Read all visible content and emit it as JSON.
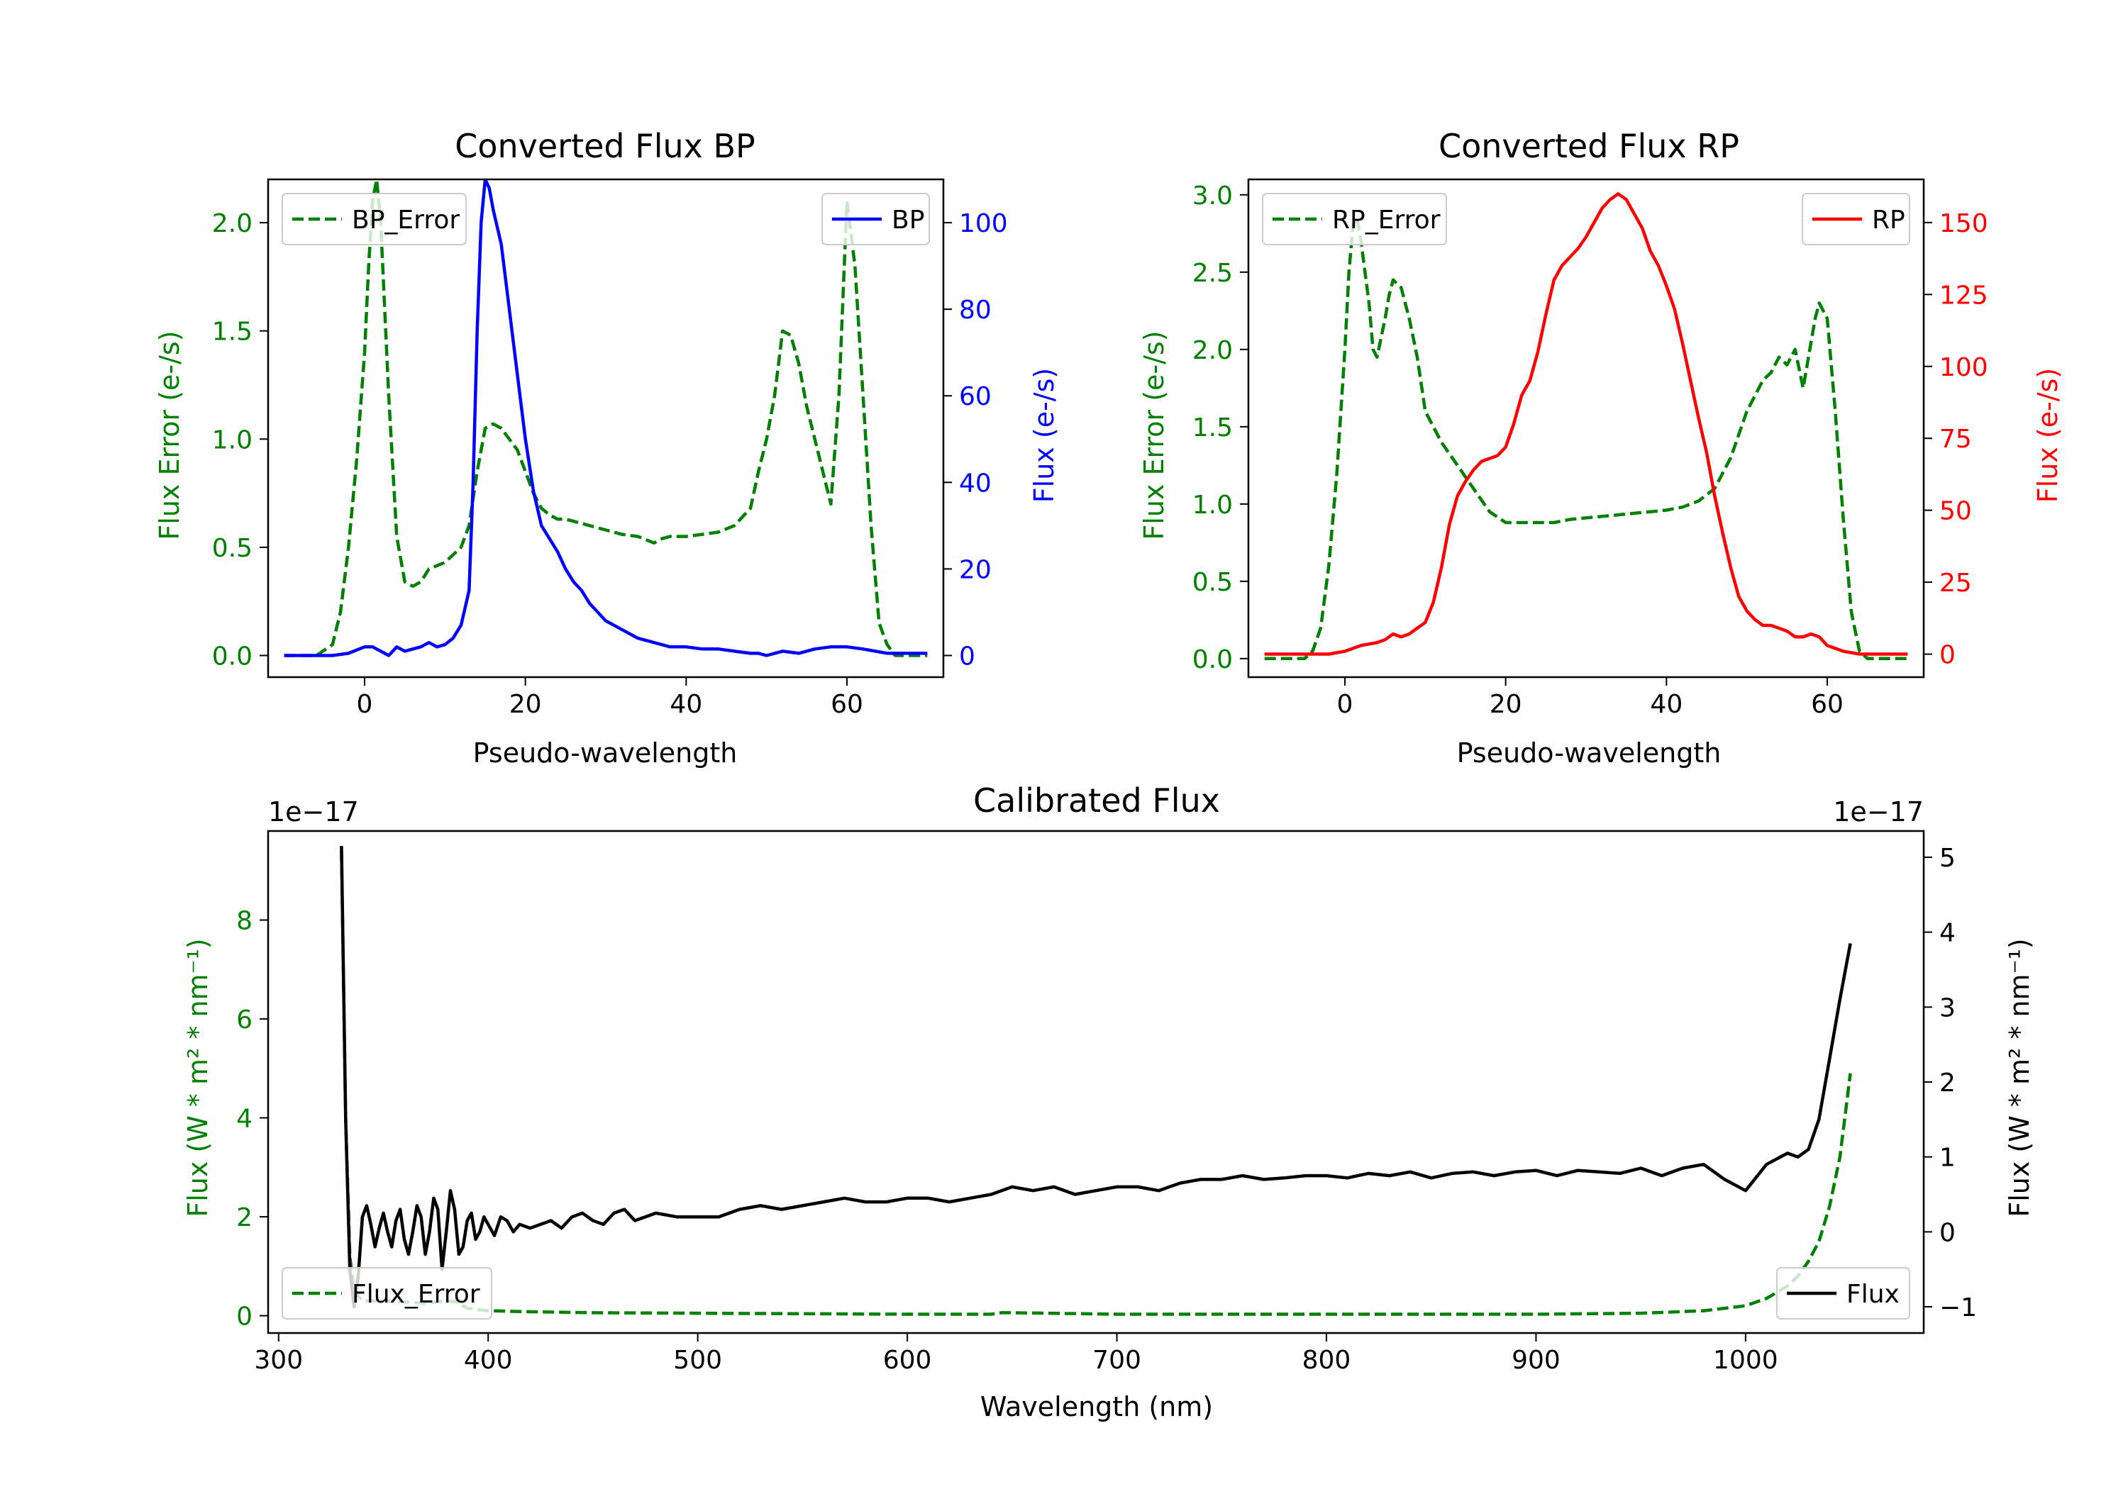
{
  "colors": {
    "error_green": "#008000",
    "bp_blue": "#0000ff",
    "rp_red": "#ff0000",
    "flux_black": "#000000",
    "axis_black": "#000000"
  },
  "chart_data": [
    {
      "type": "line",
      "title": "Converted Flux BP",
      "xlabel": "Pseudo-wavelength",
      "ylabel_left": "Flux Error (e-/s)",
      "ylabel_right": "Flux (e-/s)",
      "xlim": [
        -12,
        72
      ],
      "ylim_left": [
        -0.1,
        2.2
      ],
      "ylim_right": [
        -5,
        110
      ],
      "x_ticks": [
        0,
        20,
        40,
        60
      ],
      "y_ticks_left": [
        0.0,
        0.5,
        1.0,
        1.5,
        2.0
      ],
      "y_ticks_right": [
        0,
        20,
        40,
        60,
        80,
        100
      ],
      "legend_left": "top-left",
      "legend_right": "top-right",
      "series": [
        {
          "name": "BP_Error",
          "axis": "left",
          "style": "dashed",
          "color": "#008000",
          "x": [
            -10,
            -6,
            -4,
            -3,
            -2,
            -1,
            0,
            0.5,
            1,
            1.5,
            2,
            3,
            4,
            5,
            6,
            7,
            8,
            10,
            12,
            13,
            14,
            15,
            16,
            17,
            18,
            19,
            20,
            21,
            22,
            23,
            24,
            25,
            26,
            28,
            30,
            32,
            34,
            36,
            37,
            38,
            40,
            42,
            44,
            46,
            48,
            49,
            50,
            51,
            52,
            53,
            54,
            55,
            56,
            57,
            58,
            59,
            60,
            61,
            62,
            63,
            64,
            65,
            66,
            70
          ],
          "values": [
            0.0,
            0.0,
            0.05,
            0.2,
            0.5,
            0.9,
            1.4,
            1.8,
            2.1,
            2.2,
            2.0,
            1.2,
            0.55,
            0.34,
            0.32,
            0.34,
            0.4,
            0.43,
            0.5,
            0.6,
            0.85,
            1.05,
            1.07,
            1.05,
            1.0,
            0.95,
            0.85,
            0.75,
            0.68,
            0.65,
            0.63,
            0.63,
            0.62,
            0.6,
            0.58,
            0.56,
            0.55,
            0.52,
            0.54,
            0.55,
            0.55,
            0.56,
            0.57,
            0.6,
            0.68,
            0.85,
            1.0,
            1.2,
            1.5,
            1.48,
            1.35,
            1.15,
            1.0,
            0.85,
            0.7,
            1.2,
            2.1,
            1.8,
            1.2,
            0.6,
            0.15,
            0.05,
            0.0,
            0.0
          ]
        },
        {
          "name": "BP",
          "axis": "right",
          "style": "solid",
          "color": "#0000ff",
          "x": [
            -10,
            -4,
            -2,
            0,
            1,
            2,
            3,
            4,
            5,
            6,
            7,
            8,
            9,
            10,
            11,
            12,
            13,
            13.5,
            14,
            14.5,
            15,
            15.5,
            16,
            17,
            18,
            19,
            20,
            21,
            22,
            23,
            24,
            25,
            26,
            27,
            28,
            29,
            30,
            31,
            32,
            33,
            34,
            36,
            38,
            40,
            42,
            44,
            46,
            48,
            49,
            50,
            52,
            54,
            56,
            58,
            60,
            62,
            65,
            70
          ],
          "values": [
            0,
            0,
            0.5,
            2,
            2,
            1,
            0,
            2,
            1,
            1.5,
            2,
            3,
            2,
            2.5,
            4,
            7,
            15,
            40,
            75,
            100,
            110,
            108,
            103,
            95,
            80,
            65,
            50,
            38,
            30,
            27,
            24,
            20,
            17,
            15,
            12,
            10,
            8,
            7,
            6,
            5,
            4,
            3,
            2,
            2,
            1.5,
            1.5,
            1,
            0.5,
            0.5,
            0,
            1,
            0.5,
            1.5,
            2,
            2,
            1.5,
            0.5,
            0.5
          ]
        }
      ]
    },
    {
      "type": "line",
      "title": "Converted Flux RP",
      "xlabel": "Pseudo-wavelength",
      "ylabel_left": "Flux Error (e-/s)",
      "ylabel_right": "Flux (e-/s)",
      "xlim": [
        -12,
        72
      ],
      "ylim_left": [
        -0.12,
        3.1
      ],
      "ylim_right": [
        -8,
        165
      ],
      "x_ticks": [
        0,
        20,
        40,
        60
      ],
      "y_ticks_left": [
        0.0,
        0.5,
        1.0,
        1.5,
        2.0,
        2.5,
        3.0
      ],
      "y_ticks_right": [
        0,
        25,
        50,
        75,
        100,
        125,
        150
      ],
      "legend_left": "top-left",
      "legend_right": "top-right",
      "series": [
        {
          "name": "RP_Error",
          "axis": "left",
          "style": "dashed",
          "color": "#008000",
          "x": [
            -10,
            -5,
            -4,
            -3,
            -2,
            -1,
            0,
            0.5,
            1,
            1.5,
            2,
            3,
            3.5,
            4,
            5,
            5.5,
            6,
            7,
            8,
            9,
            10,
            11,
            12,
            14,
            16,
            18,
            20,
            22,
            24,
            26,
            28,
            30,
            32,
            34,
            36,
            38,
            40,
            42,
            44,
            46,
            48,
            50,
            52,
            53,
            54,
            55,
            56,
            57,
            58,
            58.5,
            59,
            60,
            61,
            62,
            63,
            64,
            65,
            70
          ],
          "values": [
            0,
            0,
            0.05,
            0.2,
            0.6,
            1.2,
            2.0,
            2.5,
            2.8,
            2.85,
            2.7,
            2.3,
            2.0,
            1.95,
            2.2,
            2.35,
            2.45,
            2.4,
            2.2,
            1.95,
            1.6,
            1.5,
            1.4,
            1.25,
            1.1,
            0.95,
            0.88,
            0.88,
            0.88,
            0.88,
            0.9,
            0.91,
            0.92,
            0.93,
            0.94,
            0.95,
            0.96,
            0.98,
            1.02,
            1.1,
            1.3,
            1.6,
            1.8,
            1.85,
            1.95,
            1.9,
            2.0,
            1.75,
            2.05,
            2.2,
            2.3,
            2.2,
            1.6,
            0.9,
            0.3,
            0.05,
            0,
            0
          ]
        },
        {
          "name": "RP",
          "axis": "right",
          "style": "solid",
          "color": "#ff0000",
          "x": [
            -10,
            -2,
            0,
            2,
            4,
            5,
            6,
            7,
            8,
            9,
            10,
            11,
            12,
            13,
            14,
            15,
            16,
            17,
            18,
            19,
            20,
            21,
            22,
            23,
            24,
            25,
            26,
            27,
            28,
            29,
            30,
            31,
            32,
            33,
            34,
            35,
            36,
            37,
            38,
            39,
            40,
            41,
            42,
            43,
            44,
            45,
            46,
            47,
            48,
            49,
            50,
            51,
            52,
            53,
            54,
            55,
            56,
            57,
            58,
            59,
            60,
            62,
            64,
            70
          ],
          "values": [
            0,
            0,
            1,
            3,
            4,
            5,
            7,
            6,
            7,
            9,
            11,
            18,
            30,
            45,
            55,
            60,
            64,
            67,
            68,
            69,
            72,
            80,
            90,
            95,
            105,
            118,
            130,
            135,
            138,
            141,
            145,
            150,
            155,
            158,
            160,
            158,
            153,
            148,
            140,
            135,
            128,
            120,
            108,
            95,
            82,
            70,
            55,
            42,
            30,
            20,
            15,
            12,
            10,
            10,
            9,
            8,
            6,
            6,
            7,
            6,
            3,
            1,
            0,
            0
          ]
        }
      ]
    },
    {
      "type": "line",
      "title": "Calibrated Flux",
      "xlabel": "Wavelength (nm)",
      "ylabel_left": "Flux (W * m² * nm⁻¹)",
      "ylabel_right": "Flux (W * m² * nm⁻¹)",
      "offset_left": "1e−17",
      "offset_right": "1e−17",
      "xlim": [
        295,
        1085
      ],
      "ylim_left": [
        -0.35,
        9.8
      ],
      "ylim_right": [
        -1.35,
        5.35
      ],
      "x_ticks": [
        300,
        400,
        500,
        600,
        700,
        800,
        900,
        1000
      ],
      "y_ticks_left": [
        0,
        2,
        4,
        6,
        8
      ],
      "y_ticks_right": [
        -1,
        0,
        1,
        2,
        3,
        4,
        5
      ],
      "y_tick_labels_right": [
        "−1",
        "0",
        "1",
        "2",
        "3",
        "4",
        "5"
      ],
      "legend_left": "bottom-left",
      "legend_right": "bottom-right",
      "series": [
        {
          "name": "Flux_Error",
          "axis": "left",
          "style": "dashed",
          "color": "#008000",
          "x": [
            330,
            332,
            334,
            336,
            340,
            350,
            360,
            370,
            380,
            385,
            390,
            400,
            420,
            450,
            500,
            550,
            600,
            640,
            645,
            650,
            700,
            800,
            900,
            950,
            980,
            1000,
            1010,
            1020,
            1025,
            1030,
            1035,
            1040,
            1045,
            1050
          ],
          "values": [
            9.4,
            4.0,
            1.2,
            0.5,
            0.3,
            0.3,
            0.28,
            0.25,
            0.3,
            0.28,
            0.15,
            0.1,
            0.08,
            0.06,
            0.05,
            0.04,
            0.03,
            0.03,
            0.06,
            0.06,
            0.03,
            0.03,
            0.03,
            0.05,
            0.1,
            0.2,
            0.35,
            0.6,
            0.8,
            1.1,
            1.5,
            2.2,
            3.2,
            4.9
          ]
        },
        {
          "name": "Flux",
          "axis": "right",
          "style": "solid",
          "color": "#000000",
          "x": [
            330,
            332,
            334,
            336,
            338,
            340,
            342,
            344,
            346,
            348,
            350,
            352,
            354,
            356,
            358,
            360,
            362,
            364,
            366,
            368,
            370,
            372,
            374,
            376,
            378,
            380,
            382,
            384,
            386,
            388,
            390,
            392,
            394,
            396,
            398,
            400,
            403,
            406,
            409,
            412,
            415,
            420,
            425,
            430,
            435,
            440,
            445,
            450,
            455,
            460,
            465,
            470,
            475,
            480,
            490,
            500,
            510,
            520,
            530,
            540,
            550,
            560,
            570,
            580,
            590,
            600,
            610,
            620,
            630,
            640,
            645,
            650,
            660,
            670,
            680,
            690,
            700,
            710,
            720,
            730,
            740,
            750,
            760,
            770,
            780,
            790,
            800,
            810,
            820,
            830,
            840,
            850,
            860,
            870,
            880,
            890,
            900,
            910,
            920,
            930,
            940,
            950,
            960,
            970,
            980,
            990,
            1000,
            1010,
            1020,
            1025,
            1030,
            1035,
            1040,
            1045,
            1050
          ],
          "values": [
            5.15,
            1.5,
            -0.5,
            -1.0,
            -0.6,
            0.2,
            0.35,
            0.1,
            -0.2,
            0.05,
            0.25,
            0.0,
            -0.2,
            0.15,
            0.3,
            -0.1,
            -0.3,
            0.0,
            0.35,
            0.2,
            -0.3,
            0.0,
            0.45,
            0.3,
            -0.5,
            0.0,
            0.55,
            0.3,
            -0.3,
            -0.2,
            0.15,
            0.25,
            -0.1,
            0.0,
            0.2,
            0.1,
            -0.05,
            0.2,
            0.15,
            0.0,
            0.1,
            0.05,
            0.1,
            0.15,
            0.05,
            0.2,
            0.25,
            0.15,
            0.1,
            0.25,
            0.3,
            0.15,
            0.2,
            0.25,
            0.2,
            0.2,
            0.2,
            0.3,
            0.35,
            0.3,
            0.35,
            0.4,
            0.45,
            0.4,
            0.4,
            0.45,
            0.45,
            0.4,
            0.45,
            0.5,
            0.55,
            0.6,
            0.55,
            0.6,
            0.5,
            0.55,
            0.6,
            0.6,
            0.55,
            0.65,
            0.7,
            0.7,
            0.75,
            0.7,
            0.72,
            0.75,
            0.75,
            0.72,
            0.78,
            0.75,
            0.8,
            0.72,
            0.78,
            0.8,
            0.75,
            0.8,
            0.82,
            0.75,
            0.82,
            0.8,
            0.78,
            0.85,
            0.75,
            0.85,
            0.9,
            0.7,
            0.55,
            0.9,
            1.05,
            1.0,
            1.1,
            1.5,
            2.3,
            3.1,
            3.85
          ]
        }
      ]
    }
  ]
}
